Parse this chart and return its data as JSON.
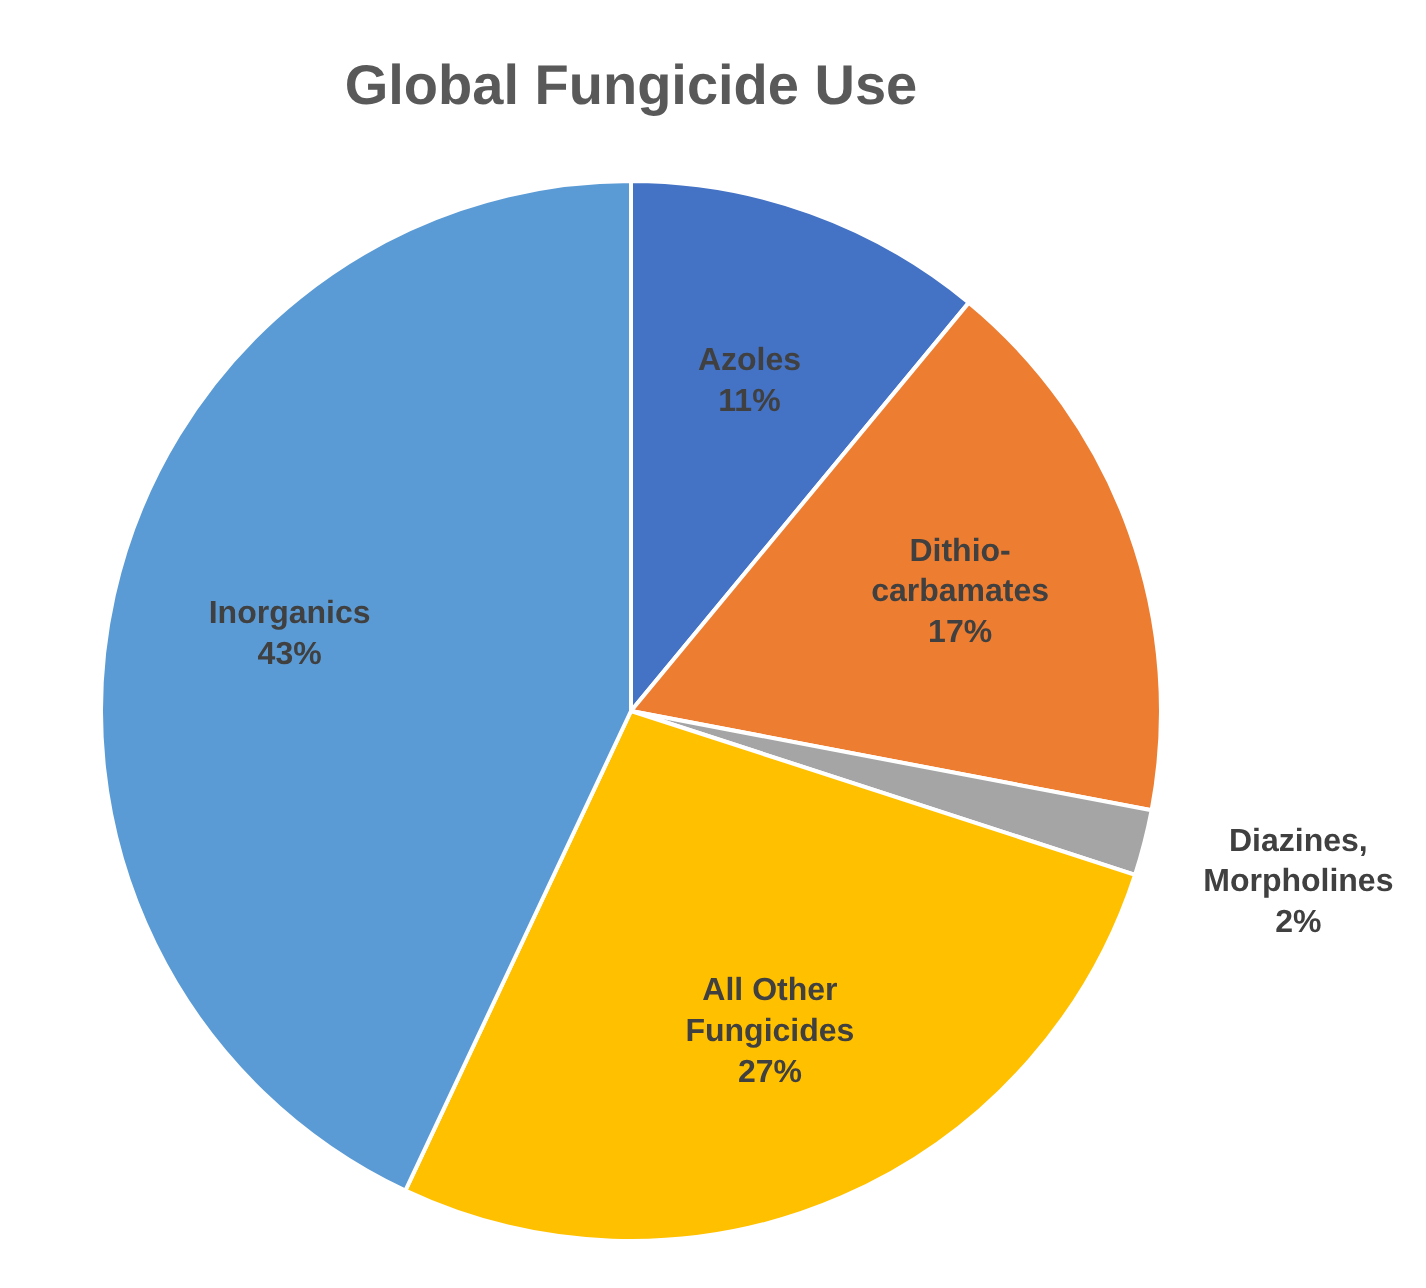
{
  "chart_data": {
    "type": "pie",
    "title": "Global Fungicide Use",
    "categories": [
      "Azoles",
      "Dithio-\ncarbamates",
      "Diazines,\nMorpholines",
      "All Other\nFungicides",
      "Inorganics"
    ],
    "values": [
      11,
      17,
      2,
      27,
      43
    ],
    "colors": [
      "#4472c4",
      "#ed7d31",
      "#a5a5a5",
      "#ffc000",
      "#5b9bd5"
    ],
    "value_labels": [
      "11%",
      "17%",
      "2%",
      "27%",
      "43%"
    ]
  }
}
